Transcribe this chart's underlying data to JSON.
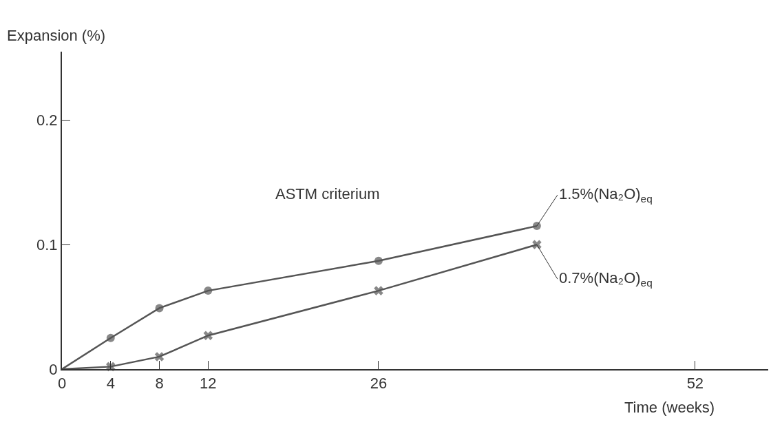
{
  "chart_data": {
    "type": "line",
    "xlabel": "Time (weeks)",
    "ylabel": "Expansion (%)",
    "xlim": [
      0,
      58
    ],
    "ylim": [
      0,
      0.255
    ],
    "xticks": [
      0,
      4,
      8,
      12,
      26,
      52
    ],
    "yticks": [
      0,
      0.1,
      0.2
    ],
    "legend": false,
    "line_style": "solid",
    "series": [
      {
        "name": "1.5%(Na₂O)$_{eq}$",
        "color": "#555555",
        "marker": "circle",
        "x": [
          0,
          4,
          8,
          12,
          26,
          39
        ],
        "values": [
          0,
          0.025,
          0.049,
          0.063,
          0.087,
          0.115
        ]
      },
      {
        "name": "0.7%(Na₂O)$_{eq}$",
        "color": "#555555",
        "marker": "cross",
        "x": [
          0,
          4,
          8,
          12,
          26,
          39
        ],
        "values": [
          0,
          0.002,
          0.01,
          0.027,
          0.063,
          0.1
        ]
      }
    ],
    "annotations": [
      "ASTM criterium"
    ]
  }
}
